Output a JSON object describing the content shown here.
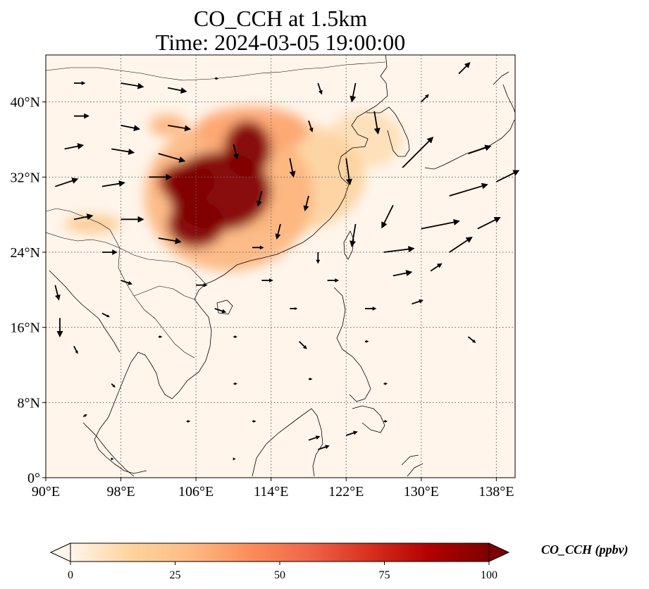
{
  "title_line1": "CO_CCH at 1.5km",
  "title_line2": "Time: 2024-03-05 19:00:00",
  "map": {
    "lon_range": [
      90,
      140
    ],
    "lat_range": [
      0,
      45
    ],
    "lon_ticks": [
      {
        "v": 90,
        "label": "90°E"
      },
      {
        "v": 98,
        "label": "98°E"
      },
      {
        "v": 106,
        "label": "106°E"
      },
      {
        "v": 114,
        "label": "114°E"
      },
      {
        "v": 122,
        "label": "122°E"
      },
      {
        "v": 130,
        "label": "130°E"
      },
      {
        "v": 138,
        "label": "138°E"
      }
    ],
    "lat_ticks": [
      {
        "v": 0,
        "label": "0°"
      },
      {
        "v": 8,
        "label": "8°N"
      },
      {
        "v": 16,
        "label": "16°N"
      },
      {
        "v": 24,
        "label": "24°N"
      },
      {
        "v": 32,
        "label": "32°N"
      },
      {
        "v": 40,
        "label": "40°N"
      }
    ],
    "gridlines": true
  },
  "colorbar": {
    "label": "CO_CCH (ppbv)",
    "min": 0,
    "max": 100,
    "ticks": [
      {
        "v": 0,
        "label": "0"
      },
      {
        "v": 25,
        "label": "25"
      },
      {
        "v": 50,
        "label": "50"
      },
      {
        "v": 75,
        "label": "75"
      },
      {
        "v": 100,
        "label": "100"
      }
    ],
    "extend": "both",
    "colormap": [
      "#fff5eb",
      "#fdd49e",
      "#fdbb84",
      "#fc8d59",
      "#ef6548",
      "#d7301f",
      "#b30000",
      "#7f0000"
    ]
  },
  "concentration_patches": [
    {
      "lon": 108.5,
      "lat": 30.5,
      "rlon": 5.5,
      "rlat": 4.2,
      "ppbv": 100
    },
    {
      "lon": 111.5,
      "lat": 35.0,
      "rlon": 2.5,
      "rlat": 3.0,
      "ppbv": 100
    },
    {
      "lon": 106.0,
      "lat": 27.0,
      "rlon": 3.0,
      "rlat": 2.5,
      "ppbv": 100
    },
    {
      "lon": 105.0,
      "lat": 31.5,
      "rlon": 3.0,
      "rlat": 2.0,
      "ppbv": 95
    },
    {
      "lon": 109.5,
      "lat": 30.0,
      "rlon": 9.0,
      "rlat": 8.0,
      "ppbv": 30
    },
    {
      "lon": 115.0,
      "lat": 32.0,
      "rlon": 9.0,
      "rlat": 6.0,
      "ppbv": 15
    },
    {
      "lon": 112.0,
      "lat": 37.0,
      "rlon": 6.0,
      "rlat": 2.5,
      "ppbv": 35
    },
    {
      "lon": 103.0,
      "lat": 37.5,
      "rlon": 2.0,
      "rlat": 1.2,
      "ppbv": 30
    },
    {
      "lon": 95.0,
      "lat": 27.0,
      "rlon": 3.0,
      "rlat": 1.0,
      "ppbv": 20
    },
    {
      "lon": 124.0,
      "lat": 36.0,
      "rlon": 4.0,
      "rlat": 3.0,
      "ppbv": 10
    }
  ],
  "wind_arrows": [
    {
      "lon": 93,
      "lat": 42,
      "u": 1.5,
      "v": 0
    },
    {
      "lon": 98,
      "lat": 42,
      "u": 3,
      "v": -0.5
    },
    {
      "lon": 103,
      "lat": 41.5,
      "u": 2.5,
      "v": -0.5
    },
    {
      "lon": 108,
      "lat": 42.5,
      "u": 0.5,
      "v": 0
    },
    {
      "lon": 119,
      "lat": 42,
      "u": 0.5,
      "v": -1.5
    },
    {
      "lon": 123,
      "lat": 42,
      "u": -0.5,
      "v": -2.5
    },
    {
      "lon": 134,
      "lat": 43,
      "u": 1.5,
      "v": 1.5
    },
    {
      "lon": 93,
      "lat": 38.5,
      "u": 2,
      "v": 0
    },
    {
      "lon": 98,
      "lat": 37.5,
      "u": 2.5,
      "v": -0.5
    },
    {
      "lon": 103,
      "lat": 37.5,
      "u": 3,
      "v": -0.5
    },
    {
      "lon": 118,
      "lat": 38,
      "u": 0.5,
      "v": -1.5
    },
    {
      "lon": 125,
      "lat": 39,
      "u": 0.5,
      "v": -3
    },
    {
      "lon": 130,
      "lat": 40,
      "u": 1,
      "v": 1
    },
    {
      "lon": 92,
      "lat": 35,
      "u": 2.5,
      "v": 0.5
    },
    {
      "lon": 97,
      "lat": 35,
      "u": 3,
      "v": -0.5
    },
    {
      "lon": 102,
      "lat": 34.5,
      "u": 3.5,
      "v": -1
    },
    {
      "lon": 110,
      "lat": 35.5,
      "u": 0.5,
      "v": -2
    },
    {
      "lon": 116,
      "lat": 34,
      "u": 0.5,
      "v": -2.5
    },
    {
      "lon": 122,
      "lat": 34,
      "u": 0.5,
      "v": -3.5
    },
    {
      "lon": 128,
      "lat": 33,
      "u": 4,
      "v": 4
    },
    {
      "lon": 135,
      "lat": 34.5,
      "u": 3,
      "v": 1
    },
    {
      "lon": 91,
      "lat": 31,
      "u": 3,
      "v": 1
    },
    {
      "lon": 96,
      "lat": 31,
      "u": 3,
      "v": 0.5
    },
    {
      "lon": 101,
      "lat": 32,
      "u": 3,
      "v": 0
    },
    {
      "lon": 113,
      "lat": 30.5,
      "u": -0.5,
      "v": -2
    },
    {
      "lon": 118,
      "lat": 30,
      "u": -0.5,
      "v": -2
    },
    {
      "lon": 127,
      "lat": 29,
      "u": -1.5,
      "v": -3
    },
    {
      "lon": 133,
      "lat": 30,
      "u": 5,
      "v": 1.5
    },
    {
      "lon": 138,
      "lat": 31.5,
      "u": 3,
      "v": 1.5
    },
    {
      "lon": 93,
      "lat": 27.5,
      "u": 2.5,
      "v": 0.5
    },
    {
      "lon": 98,
      "lat": 27.5,
      "u": 3,
      "v": 0
    },
    {
      "lon": 115,
      "lat": 27,
      "u": -0.5,
      "v": -2
    },
    {
      "lon": 123,
      "lat": 27,
      "u": -0.5,
      "v": -3
    },
    {
      "lon": 130,
      "lat": 26.5,
      "u": 5,
      "v": 1
    },
    {
      "lon": 136,
      "lat": 26.5,
      "u": 3,
      "v": 1.5
    },
    {
      "lon": 96,
      "lat": 24,
      "u": 2,
      "v": 0
    },
    {
      "lon": 102,
      "lat": 25.5,
      "u": 3,
      "v": -0.5
    },
    {
      "lon": 112,
      "lat": 24.5,
      "u": 1.5,
      "v": 0
    },
    {
      "lon": 119,
      "lat": 24,
      "u": 0,
      "v": -1.5
    },
    {
      "lon": 126,
      "lat": 24,
      "u": 4,
      "v": 0.5
    },
    {
      "lon": 133,
      "lat": 24,
      "u": 3,
      "v": 2
    },
    {
      "lon": 91,
      "lat": 20.5,
      "u": 0.5,
      "v": -2
    },
    {
      "lon": 98,
      "lat": 21,
      "u": 1.5,
      "v": -0.5
    },
    {
      "lon": 106,
      "lat": 20.5,
      "u": 1.5,
      "v": 0
    },
    {
      "lon": 113,
      "lat": 21,
      "u": 1.5,
      "v": 0
    },
    {
      "lon": 120,
      "lat": 21,
      "u": 1.5,
      "v": 0
    },
    {
      "lon": 127,
      "lat": 21.5,
      "u": 2.5,
      "v": 0.5
    },
    {
      "lon": 131,
      "lat": 22,
      "u": 1.5,
      "v": 1
    },
    {
      "lon": 91.5,
      "lat": 17,
      "u": 0,
      "v": -2.5
    },
    {
      "lon": 96,
      "lat": 17.5,
      "u": 1,
      "v": -0.5
    },
    {
      "lon": 108,
      "lat": 18,
      "u": 1.5,
      "v": -0.5
    },
    {
      "lon": 116,
      "lat": 18,
      "u": 1,
      "v": 0
    },
    {
      "lon": 124,
      "lat": 18,
      "u": 1.5,
      "v": 0
    },
    {
      "lon": 129,
      "lat": 18.5,
      "u": 1.5,
      "v": 0.5
    },
    {
      "lon": 93,
      "lat": 14,
      "u": 0.5,
      "v": -1
    },
    {
      "lon": 102,
      "lat": 15,
      "u": 0.5,
      "v": 0
    },
    {
      "lon": 110,
      "lat": 15,
      "u": 0.5,
      "v": 0
    },
    {
      "lon": 117,
      "lat": 14.5,
      "u": 1,
      "v": -1
    },
    {
      "lon": 124,
      "lat": 14.5,
      "u": 0.5,
      "v": 0
    },
    {
      "lon": 135,
      "lat": 15,
      "u": 1,
      "v": -0.8
    },
    {
      "lon": 97,
      "lat": 10,
      "u": 0.5,
      "v": -0.5
    },
    {
      "lon": 110,
      "lat": 10,
      "u": 0.5,
      "v": 0
    },
    {
      "lon": 118,
      "lat": 10.5,
      "u": 0.5,
      "v": 0
    },
    {
      "lon": 126,
      "lat": 10,
      "u": 0.5,
      "v": 0
    },
    {
      "lon": 94,
      "lat": 6.5,
      "u": 0.5,
      "v": 0.3
    },
    {
      "lon": 105,
      "lat": 6,
      "u": 0.5,
      "v": 0
    },
    {
      "lon": 112,
      "lat": 6,
      "u": 0.5,
      "v": 0
    },
    {
      "lon": 118,
      "lat": 4,
      "u": 1.5,
      "v": 0.5
    },
    {
      "lon": 126,
      "lat": 6,
      "u": 0.5,
      "v": 0
    },
    {
      "lon": 97,
      "lat": 2,
      "u": 0.3,
      "v": 0
    },
    {
      "lon": 110,
      "lat": 2,
      "u": 0.3,
      "v": 0
    },
    {
      "lon": 119,
      "lat": 3,
      "u": 1.5,
      "v": 0.5
    },
    {
      "lon": 122,
      "lat": 4.5,
      "u": 1.5,
      "v": 0.5
    }
  ]
}
